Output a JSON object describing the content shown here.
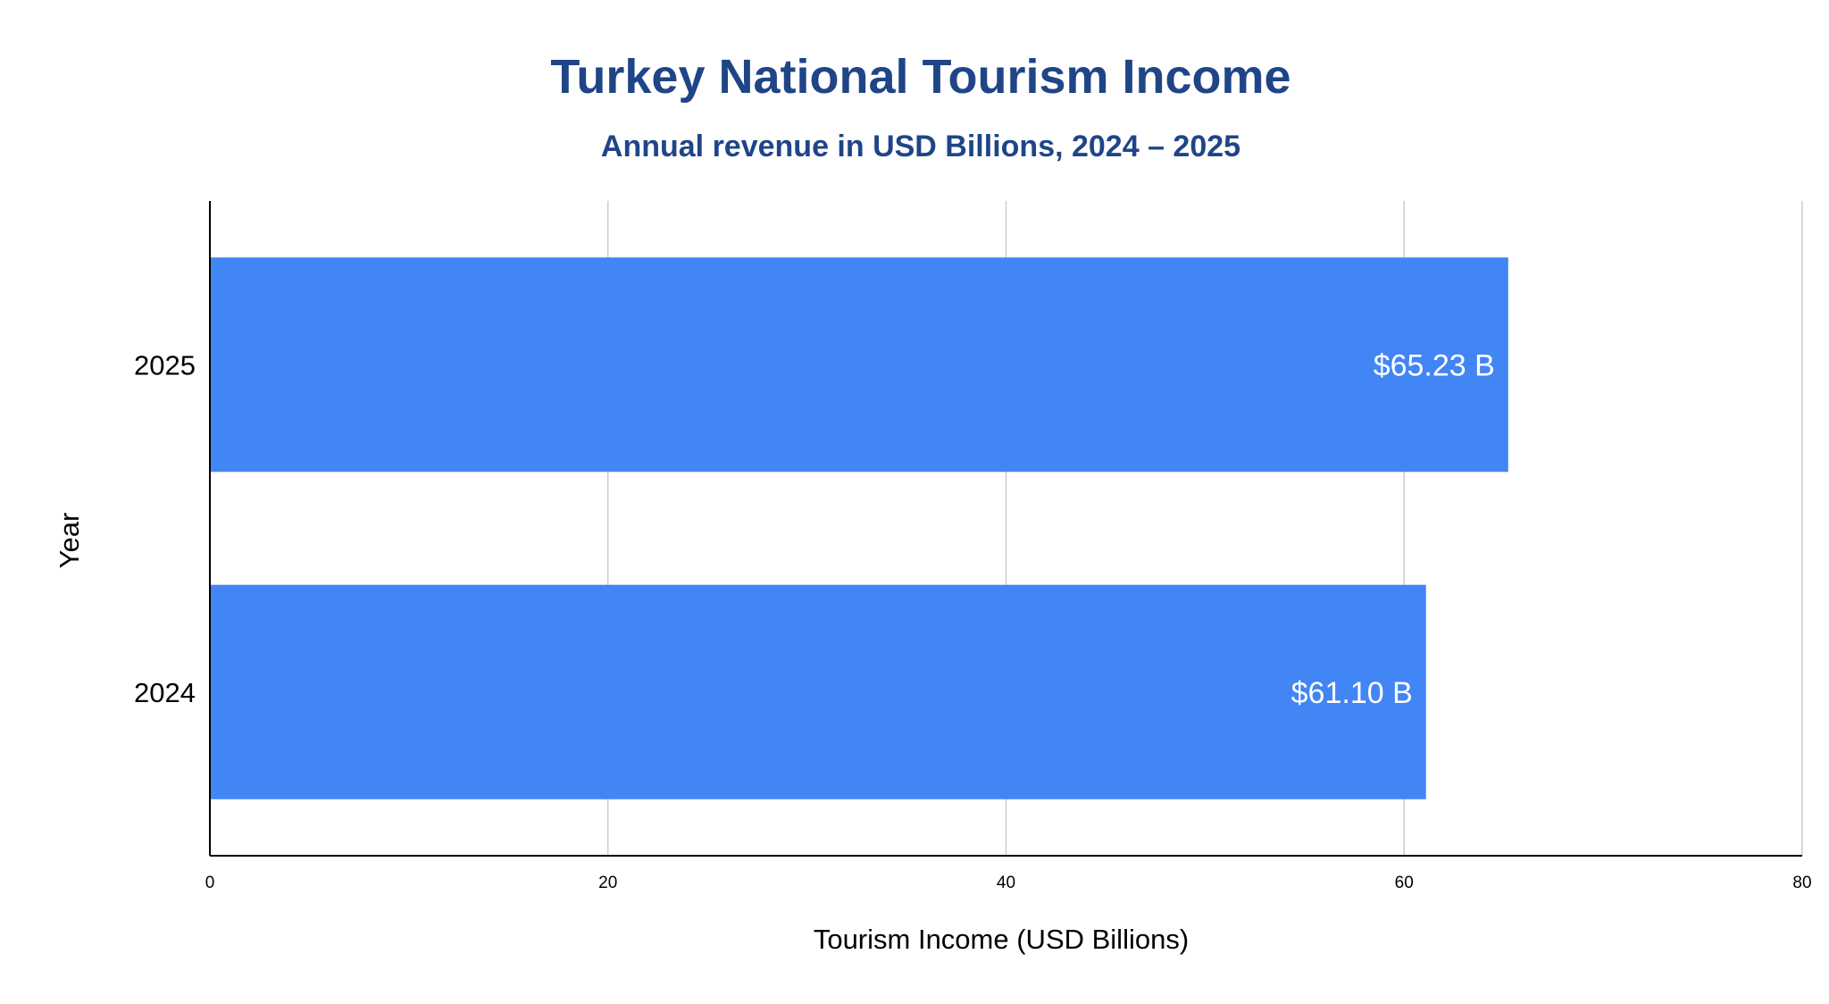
{
  "chart_data": {
    "type": "bar",
    "orientation": "horizontal",
    "title": "Turkey National Tourism Income",
    "subtitle": "Annual revenue in USD Billions, 2024 – 2025",
    "xlabel": "Tourism Income (USD Billions)",
    "ylabel": "Year",
    "categories": [
      "2025",
      "2024"
    ],
    "values": [
      65.23,
      61.1
    ],
    "data_labels": [
      "$65.23 B",
      "$61.10 B"
    ],
    "xlim": [
      0,
      80
    ],
    "xticks": [
      "0",
      "20",
      "40",
      "60",
      "80"
    ],
    "grid": true,
    "legend": "none",
    "colors": {
      "bar": "#4285f4",
      "title": "#1f4587",
      "gridline": "#cccccc",
      "axis": "#000000",
      "data_label": "#ffffff"
    }
  }
}
